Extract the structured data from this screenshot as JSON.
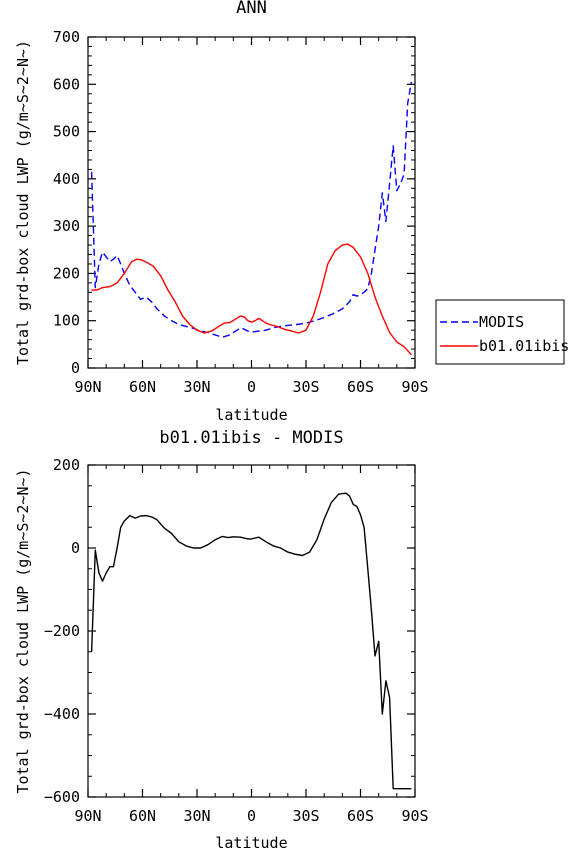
{
  "chart_data": [
    {
      "type": "line",
      "title": "ANN",
      "xlabel": "latitude",
      "ylabel": "Total grd-box cloud LWP (g/m~S~2~N~)",
      "x_tick_labels": [
        "90N",
        "60N",
        "30N",
        "0",
        "30S",
        "60S",
        "90S"
      ],
      "x_tick_values": [
        90,
        60,
        30,
        0,
        -30,
        -60,
        -90
      ],
      "xlim": [
        90,
        -90
      ],
      "ylim": [
        0,
        700
      ],
      "y_ticks": [
        0,
        100,
        200,
        300,
        400,
        500,
        600,
        700
      ],
      "legend_position": "right",
      "series": [
        {
          "name": "MODIS",
          "color": "#0000ff",
          "style": "dashed",
          "x": [
            88,
            86,
            84,
            82,
            80,
            78,
            76,
            74,
            72,
            70,
            67,
            64,
            61,
            58,
            55,
            52,
            48,
            44,
            40,
            36,
            32,
            28,
            24,
            20,
            16,
            12,
            8,
            6,
            4,
            2,
            0,
            -4,
            -8,
            -12,
            -16,
            -20,
            -25,
            -30,
            -35,
            -40,
            -45,
            -50,
            -54,
            -56,
            -58,
            -60,
            -62,
            -64,
            -66,
            -68,
            -70,
            -72,
            -74,
            -76,
            -78,
            -80,
            -82,
            -84,
            -86,
            -88
          ],
          "y": [
            415,
            170,
            220,
            245,
            235,
            225,
            230,
            238,
            220,
            200,
            175,
            160,
            145,
            150,
            140,
            125,
            110,
            100,
            92,
            88,
            84,
            78,
            75,
            70,
            65,
            70,
            80,
            85,
            82,
            78,
            76,
            78,
            80,
            85,
            88,
            90,
            92,
            95,
            100,
            107,
            115,
            125,
            140,
            155,
            152,
            155,
            160,
            168,
            200,
            250,
            300,
            370,
            310,
            390,
            470,
            375,
            390,
            410,
            560,
            605
          ]
        },
        {
          "name": "b01.01ibis",
          "color": "#ff0000",
          "style": "solid",
          "x": [
            88,
            85,
            82,
            78,
            74,
            70,
            66,
            63,
            60,
            57,
            54,
            50,
            46,
            42,
            38,
            34,
            30,
            26,
            22,
            18,
            15,
            12,
            9,
            6,
            4,
            2,
            0,
            -2,
            -4,
            -6,
            -8,
            -10,
            -14,
            -18,
            -22,
            -26,
            -30,
            -34,
            -38,
            -42,
            -46,
            -50,
            -53,
            -56,
            -60,
            -64,
            -68,
            -72,
            -76,
            -80,
            -84,
            -88
          ],
          "y": [
            165,
            165,
            170,
            172,
            180,
            200,
            225,
            230,
            228,
            222,
            215,
            195,
            165,
            140,
            110,
            92,
            80,
            74,
            78,
            88,
            95,
            96,
            103,
            110,
            108,
            100,
            97,
            100,
            105,
            100,
            95,
            92,
            88,
            82,
            78,
            74,
            80,
            110,
            160,
            220,
            248,
            260,
            262,
            255,
            235,
            200,
            150,
            110,
            75,
            55,
            45,
            28
          ]
        }
      ]
    },
    {
      "type": "line",
      "title": "b01.01ibis - MODIS",
      "xlabel": "latitude",
      "ylabel": "Total grd-box cloud LWP (g/m~S~2~N~)",
      "x_tick_labels": [
        "90N",
        "60N",
        "30N",
        "0",
        "30S",
        "60S",
        "90S"
      ],
      "x_tick_values": [
        90,
        60,
        30,
        0,
        -30,
        -60,
        -90
      ],
      "xlim": [
        90,
        -90
      ],
      "ylim": [
        -600,
        200
      ],
      "y_ticks": [
        -600,
        -400,
        -200,
        0,
        200
      ],
      "series": [
        {
          "color": "#000000",
          "style": "solid",
          "x": [
            88,
            86,
            84,
            82,
            80,
            78,
            76,
            74,
            72,
            70,
            67,
            64,
            61,
            58,
            55,
            52,
            48,
            44,
            40,
            36,
            32,
            28,
            24,
            20,
            16,
            13,
            10,
            6,
            2,
            0,
            -4,
            -8,
            -12,
            -16,
            -20,
            -24,
            -28,
            -32,
            -36,
            -40,
            -44,
            -48,
            -52,
            -54,
            -56,
            -58,
            -60,
            -62,
            -64,
            -66,
            -68,
            -70,
            -72,
            -74,
            -76,
            -78,
            -80,
            -82,
            -84,
            -86,
            -88
          ],
          "y": [
            -250,
            -5,
            -60,
            -80,
            -60,
            -45,
            -45,
            0,
            50,
            65,
            78,
            72,
            77,
            78,
            75,
            68,
            48,
            35,
            15,
            5,
            0,
            0,
            8,
            20,
            28,
            25,
            27,
            26,
            22,
            22,
            26,
            15,
            5,
            0,
            -10,
            -15,
            -18,
            -10,
            20,
            70,
            110,
            130,
            132,
            125,
            105,
            100,
            80,
            50,
            -50,
            -150,
            -260,
            -225,
            -400,
            -320,
            -360,
            -580,
            -580,
            -580,
            -580,
            -580,
            -580
          ]
        }
      ]
    }
  ]
}
